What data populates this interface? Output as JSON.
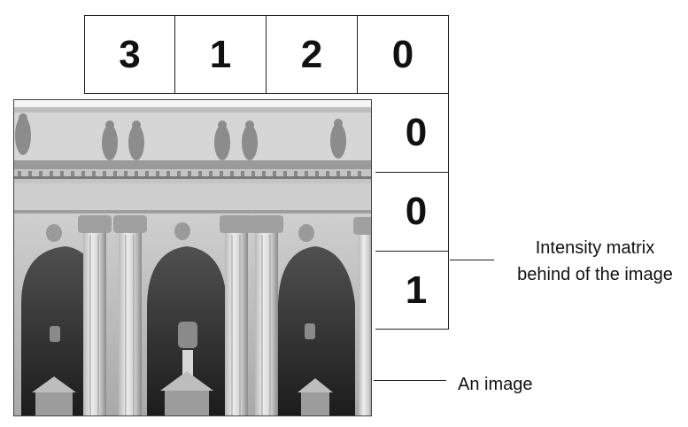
{
  "matrix": {
    "top_row": [
      "3",
      "1",
      "2",
      "0"
    ],
    "right_column": [
      "0",
      "0",
      "1"
    ]
  },
  "labels": {
    "matrix_label": "Intensity matrix behind of the image",
    "image_label": "An image"
  },
  "photo": {
    "subject": "grayscale photo of a classical building facade with columns, arches and statues"
  }
}
